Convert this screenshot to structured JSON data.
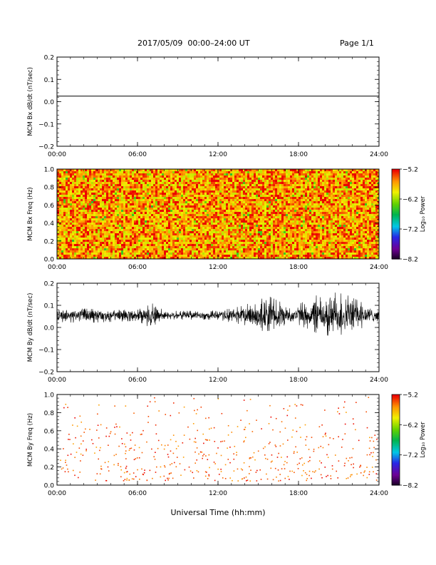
{
  "header": {
    "title": "2017/05/09  00:00–24:00 UT",
    "page": "Page 1/1"
  },
  "global_xlabel": "Universal Time (hh:mm)",
  "chart_data": [
    {
      "type": "line",
      "ylabel": "MCM Bx dB/dt (nT/sec)",
      "x_ticklabels": [
        "00:00",
        "06:00",
        "12:00",
        "18:00",
        "24:00"
      ],
      "xlim": [
        0,
        24
      ],
      "ylim": [
        -0.2,
        0.2
      ],
      "y_ticklabels": [
        "−0.2",
        "−0.1",
        "0.0",
        "0.1",
        "0.2"
      ],
      "series": [
        {
          "x": [
            0,
            24
          ],
          "y": [
            0.025,
            0.025
          ]
        }
      ]
    },
    {
      "type": "heatmap",
      "ylabel": "MCM Bx Freq (Hz)",
      "x_ticklabels": [
        "00:00",
        "06:00",
        "12:00",
        "18:00",
        "24:00"
      ],
      "xlim": [
        0,
        24
      ],
      "ylim": [
        0,
        1.0
      ],
      "y_ticklabels": [
        "0.0",
        "0.2",
        "0.4",
        "0.6",
        "0.8",
        "1.0"
      ],
      "colorbar": {
        "label": "Log₁₀ Power",
        "ticklabels": [
          "−5.2",
          "−6.2",
          "−7.2",
          "−8.2"
        ],
        "range": [
          -8.2,
          -5.2
        ]
      },
      "description_values": {
        "dominant_power": -5.6
      }
    },
    {
      "type": "line",
      "ylabel": "MCM By dB/dt (nT/sec)",
      "x_ticklabels": [
        "00:00",
        "06:00",
        "12:00",
        "18:00",
        "24:00"
      ],
      "xlim": [
        0,
        24
      ],
      "ylim": [
        -0.2,
        0.2
      ],
      "y_ticklabels": [
        "−0.2",
        "−0.1",
        "0.0",
        "0.1",
        "0.2"
      ],
      "envelope": {
        "x": [
          0,
          2,
          4,
          6,
          7.2,
          8,
          10,
          12,
          14,
          15.5,
          16.5,
          17.5,
          18.5,
          19.5,
          20.5,
          21.5,
          22.5,
          23.5,
          24
        ],
        "upper": [
          0.08,
          0.085,
          0.08,
          0.08,
          0.11,
          0.075,
          0.075,
          0.075,
          0.1,
          0.15,
          0.12,
          0.09,
          0.12,
          0.15,
          0.16,
          0.15,
          0.12,
          0.09,
          0.08
        ],
        "lower": [
          0.025,
          0.02,
          0.025,
          0.03,
          -0.01,
          0.035,
          0.035,
          0.035,
          0.01,
          -0.02,
          0.0,
          0.02,
          0.0,
          -0.03,
          -0.04,
          -0.03,
          -0.01,
          0.02,
          0.03
        ],
        "center": 0.055
      }
    },
    {
      "type": "heatmap",
      "ylabel": "MCM By Freq (Hz)",
      "x_ticklabels": [
        "00:00",
        "06:00",
        "12:00",
        "18:00",
        "24:00"
      ],
      "xlim": [
        0,
        24
      ],
      "ylim": [
        0,
        1.0
      ],
      "y_ticklabels": [
        "0.0",
        "0.2",
        "0.4",
        "0.6",
        "0.8",
        "1.0"
      ],
      "colorbar": {
        "label": "Log₁₀ Power",
        "ticklabels": [
          "−5.2",
          "−6.2",
          "−7.2",
          "−8.2"
        ],
        "range": [
          -8.2,
          -5.2
        ]
      },
      "description_values": {
        "dominant_power": -5.4
      }
    }
  ]
}
